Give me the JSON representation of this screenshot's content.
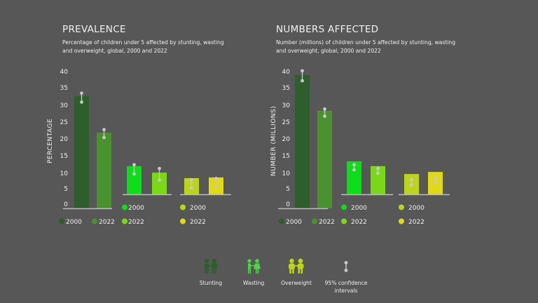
{
  "colors": {
    "background": "#575757",
    "stunting_2000": "#2e5e2b",
    "stunting_2022": "#4a922f",
    "wasting_2000": "#0fdc1a",
    "wasting_2022": "#79d916",
    "overweight_2000": "#bcd51a",
    "overweight_2022": "#e0d916",
    "ci": "#c8c8c8",
    "axis": "#bdbdbd"
  },
  "chart_data": [
    {
      "type": "bar",
      "title": "PREVALENCE",
      "subtitle": "Percentage of children under 5 affected by stunting, wasting and overweight, global, 2000 and 2022",
      "ylabel": "PERCENTAGE",
      "xlabel": "",
      "ylim": [
        0,
        40
      ],
      "yticks": [
        "0",
        "5",
        "10",
        "15",
        "20",
        "25",
        "30",
        "35",
        "40"
      ],
      "grid": false,
      "groups": [
        {
          "name": "Stunting",
          "bars": [
            {
              "year": "2000",
              "value": 32.6,
              "ci": [
                30.9,
                33.5
              ]
            },
            {
              "year": "2022",
              "value": 22.0,
              "ci": [
                20.6,
                22.9
              ]
            }
          ]
        },
        {
          "name": "Wasting",
          "bars": [
            {
              "year": "2000",
              "value": 8.2,
              "ci": [
                5.9,
                8.6
              ]
            },
            {
              "year": "2022",
              "value": 6.3,
              "ci": [
                4.1,
                7.5
              ]
            }
          ]
        },
        {
          "name": "Overweight",
          "bars": [
            {
              "year": "2000",
              "value": 4.7,
              "ci": [
                1.9,
                4.2
              ]
            },
            {
              "year": "2022",
              "value": 4.9,
              "ci": [
                2.3,
                4.6
              ]
            }
          ]
        }
      ],
      "legends": [
        {
          "group": "Stunting",
          "entries": [
            "2000",
            "2022"
          ]
        },
        {
          "group": "Wasting",
          "entries": [
            "2000",
            "2022"
          ]
        },
        {
          "group": "Overweight",
          "entries": [
            "2000",
            "2022"
          ]
        }
      ]
    },
    {
      "type": "bar",
      "title": "NUMBERS AFFECTED",
      "subtitle": "Number (millions) of children under 5 affected by stunting, wasting and overweight, global, 2000 and 2022",
      "ylabel": "NUMBER (MILLIONS)",
      "xlabel": "",
      "ylim": [
        0,
        40
      ],
      "yticks": [
        "0",
        "5",
        "10",
        "15",
        "20",
        "25",
        "30",
        "35",
        "40"
      ],
      "grid": false,
      "groups": [
        {
          "name": "Stunting",
          "bars": [
            {
              "year": "2000",
              "value": 38.8,
              "ci": [
                37.1,
                40.0
              ]
            },
            {
              "year": "2022",
              "value": 28.4,
              "ci": [
                26.8,
                28.9
              ]
            }
          ]
        },
        {
          "name": "Wasting",
          "bars": [
            {
              "year": "2000",
              "value": 9.6,
              "ci": [
                7.1,
                8.6
              ]
            },
            {
              "year": "2022",
              "value": 8.2,
              "ci": [
                6.1,
                7.5
              ]
            }
          ]
        },
        {
          "name": "Overweight",
          "bars": [
            {
              "year": "2000",
              "value": 5.9,
              "ci": [
                2.7,
                4.3
              ]
            },
            {
              "year": "2022",
              "value": 6.5,
              "ci": [
                3.3,
                4.7
              ]
            }
          ]
        }
      ],
      "legends": [
        {
          "group": "Stunting",
          "entries": [
            "2000",
            "2022"
          ]
        },
        {
          "group": "Wasting",
          "entries": [
            "2000",
            "2022"
          ]
        },
        {
          "group": "Overweight",
          "entries": [
            "2000",
            "2022"
          ]
        }
      ]
    }
  ],
  "key": {
    "items": [
      {
        "icon": "stunting-children-icon",
        "label": "Stunting"
      },
      {
        "icon": "wasting-children-icon",
        "label": "Wasting"
      },
      {
        "icon": "overweight-children-icon",
        "label": "Overweight"
      },
      {
        "icon": "confidence-interval-icon",
        "label": "95% confidence intervals"
      }
    ]
  }
}
